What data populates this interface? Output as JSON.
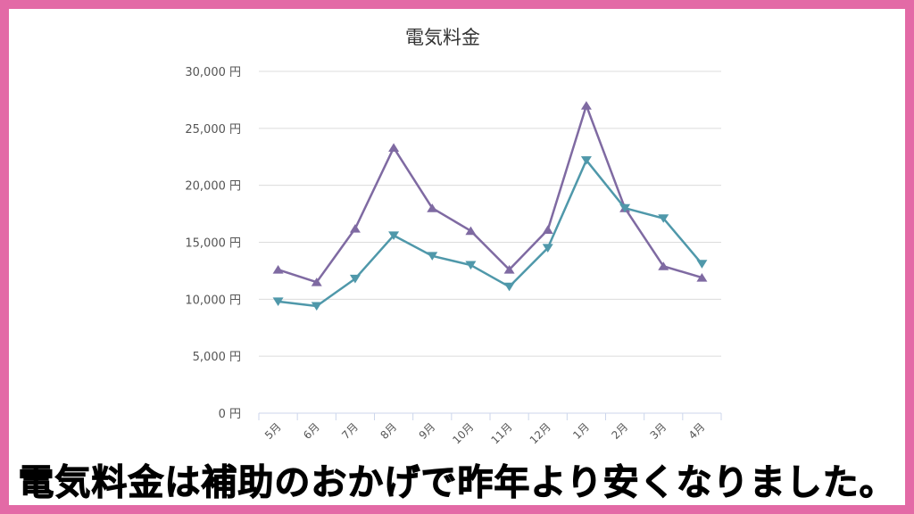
{
  "caption": "電気料金は補助のおかげで昨年より安くなりました。",
  "chart_data": {
    "type": "line",
    "title": "電気料金",
    "categories": [
      "5月",
      "6月",
      "7月",
      "8月",
      "9月",
      "10月",
      "11月",
      "12月",
      "1月",
      "2月",
      "3月",
      "4月"
    ],
    "y_ticks": [
      "0 円",
      "5,000 円",
      "10,000 円",
      "15,000 円",
      "20,000 円",
      "25,000 円",
      "30,000 円"
    ],
    "ylim": [
      0,
      30000
    ],
    "grid": true,
    "series": [
      {
        "color": "#7f6aa2",
        "marker": "triangle-up",
        "values": [
          12600,
          11500,
          16200,
          23300,
          18000,
          16000,
          12600,
          16100,
          27000,
          18000,
          12900,
          11900
        ]
      },
      {
        "color": "#4f98aa",
        "marker": "triangle-down",
        "values": [
          9800,
          9400,
          11800,
          15600,
          13800,
          13000,
          11100,
          14500,
          22200,
          18000,
          17100,
          13100
        ]
      }
    ]
  }
}
